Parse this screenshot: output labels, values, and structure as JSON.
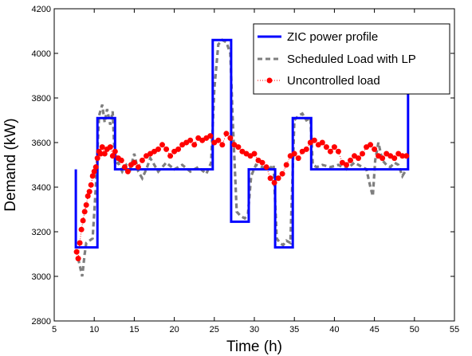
{
  "chart_data": {
    "type": "line",
    "title": "",
    "xlabel": "Time (h)",
    "ylabel": "Demand (kW)",
    "xlim": [
      5,
      55
    ],
    "ylim": [
      2800,
      4200
    ],
    "xticks": [
      5,
      10,
      15,
      20,
      25,
      30,
      35,
      40,
      45,
      50,
      55
    ],
    "yticks": [
      2800,
      3000,
      3200,
      3400,
      3600,
      3800,
      4000,
      4200
    ],
    "grid": false,
    "legend_position": "top-right",
    "series": [
      {
        "name": "ZIC power profile",
        "style": "solid",
        "color": "#0000ff",
        "x": [
          7.7,
          7.7,
          8.2,
          8.2,
          10.4,
          10.4,
          12.6,
          12.6,
          24.8,
          24.8,
          27.1,
          27.1,
          29.3,
          29.3,
          32.6,
          32.6,
          34.8,
          34.8,
          37.1,
          37.1,
          49.2,
          49.2
        ],
        "y": [
          3480,
          3130,
          3130,
          3130,
          3130,
          3710,
          3710,
          3480,
          3480,
          4060,
          4060,
          3245,
          3245,
          3480,
          3480,
          3130,
          3130,
          3710,
          3710,
          3480,
          3480,
          3830
        ]
      },
      {
        "name": "Scheduled Load with LP",
        "style": "dashed",
        "color": "#7f7f7f",
        "x": [
          8.0,
          8.5,
          8.8,
          9.0,
          9.4,
          9.8,
          10.2,
          10.6,
          11.0,
          11.3,
          11.6,
          12.0,
          12.3,
          12.6,
          13.0,
          13.5,
          14.0,
          14.5,
          15.0,
          15.5,
          16.0,
          16.5,
          17.0,
          18.0,
          19.0,
          20.0,
          21.0,
          22.0,
          23.0,
          24.0,
          24.6,
          25.0,
          25.5,
          26.0,
          26.5,
          27.0,
          27.3,
          27.8,
          28.3,
          28.8,
          29.2,
          29.6,
          30.2,
          31.0,
          31.8,
          32.4,
          32.8,
          33.2,
          33.6,
          34.0,
          34.5,
          35.0,
          35.5,
          36.0,
          36.5,
          37.0,
          37.3,
          37.8,
          38.5,
          39.5,
          40.5,
          41.5,
          42.5,
          43.5,
          44.0,
          44.5,
          44.8,
          45.1,
          45.5,
          46.0,
          46.5,
          47.0,
          47.5,
          48.0,
          48.5,
          49.0
        ],
        "y": [
          3080,
          3000,
          3100,
          3150,
          3160,
          3170,
          3400,
          3720,
          3770,
          3690,
          3750,
          3680,
          3740,
          3500,
          3510,
          3470,
          3500,
          3480,
          3550,
          3470,
          3440,
          3480,
          3530,
          3470,
          3510,
          3480,
          3500,
          3470,
          3490,
          3460,
          3510,
          3840,
          4040,
          4060,
          4050,
          4000,
          3700,
          3290,
          3270,
          3260,
          3280,
          3450,
          3500,
          3490,
          3480,
          3500,
          3170,
          3150,
          3140,
          3160,
          3150,
          3700,
          3720,
          3730,
          3700,
          3710,
          3500,
          3490,
          3500,
          3490,
          3500,
          3480,
          3510,
          3490,
          3480,
          3400,
          3360,
          3520,
          3600,
          3520,
          3500,
          3490,
          3510,
          3500,
          3450,
          3480
        ]
      },
      {
        "name": "Uncontrolled load",
        "style": "dotted-marker",
        "color": "#ff0000",
        "x": [
          7.8,
          8.0,
          8.2,
          8.4,
          8.6,
          8.8,
          9.0,
          9.2,
          9.4,
          9.6,
          9.8,
          10.0,
          10.2,
          10.4,
          10.6,
          10.8,
          11.0,
          11.3,
          11.6,
          12.0,
          12.3,
          12.6,
          13.0,
          13.4,
          13.8,
          14.2,
          14.6,
          15.0,
          15.5,
          16.0,
          16.5,
          17.0,
          17.5,
          18.0,
          18.5,
          19.0,
          19.5,
          20.0,
          20.5,
          21.0,
          21.5,
          22.0,
          22.5,
          23.0,
          23.5,
          24.0,
          24.5,
          25.0,
          25.5,
          26.0,
          26.5,
          27.0,
          27.5,
          28.0,
          28.5,
          29.0,
          29.5,
          30.0,
          30.5,
          31.0,
          31.5,
          32.0,
          32.5,
          33.0,
          33.5,
          34.0,
          34.5,
          35.0,
          35.5,
          36.0,
          36.5,
          37.0,
          37.5,
          38.0,
          38.5,
          39.0,
          39.5,
          40.0,
          40.5,
          41.0,
          41.5,
          42.0,
          42.5,
          43.0,
          43.5,
          44.0,
          44.5,
          45.0,
          45.5,
          46.0,
          46.5,
          47.0,
          47.5,
          48.0,
          48.5,
          49.0
        ],
        "y": [
          3110,
          3080,
          3150,
          3210,
          3250,
          3290,
          3320,
          3360,
          3380,
          3410,
          3450,
          3470,
          3490,
          3530,
          3560,
          3550,
          3580,
          3550,
          3570,
          3580,
          3540,
          3560,
          3530,
          3520,
          3490,
          3470,
          3500,
          3510,
          3490,
          3520,
          3540,
          3550,
          3560,
          3570,
          3590,
          3570,
          3540,
          3560,
          3570,
          3590,
          3600,
          3610,
          3590,
          3620,
          3610,
          3620,
          3630,
          3600,
          3610,
          3590,
          3640,
          3620,
          3590,
          3580,
          3560,
          3550,
          3540,
          3550,
          3520,
          3510,
          3490,
          3440,
          3420,
          3440,
          3460,
          3500,
          3540,
          3550,
          3530,
          3560,
          3570,
          3600,
          3610,
          3590,
          3600,
          3580,
          3560,
          3580,
          3560,
          3510,
          3500,
          3520,
          3540,
          3530,
          3550,
          3580,
          3590,
          3570,
          3540,
          3530,
          3550,
          3540,
          3530,
          3550,
          3540,
          3540
        ]
      }
    ]
  }
}
